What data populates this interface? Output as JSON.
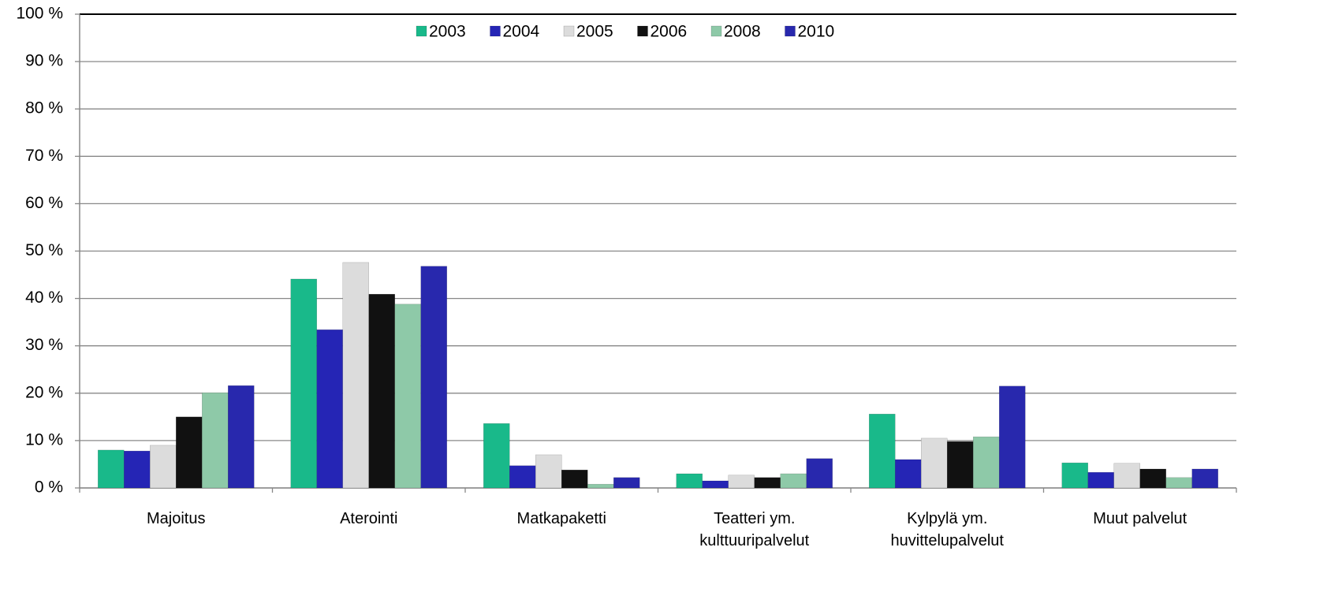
{
  "chart_data": {
    "type": "bar",
    "categories": [
      "Majoitus",
      "Aterointi",
      "Matkapaketti",
      "Teatteri ym. kulttuuripalvelut",
      "Kylpylä ym. huvittelupalvelut",
      "Muut palvelut"
    ],
    "series": [
      {
        "name": "2003",
        "color": "#19b98a",
        "values": [
          8.0,
          44.1,
          13.6,
          3.0,
          15.6,
          5.3
        ]
      },
      {
        "name": "2004",
        "color": "#2525b5",
        "values": [
          7.8,
          33.4,
          4.7,
          1.5,
          6.0,
          3.3
        ]
      },
      {
        "name": "2005",
        "color": "#dcdcdc",
        "values": [
          9.0,
          47.6,
          7.0,
          2.7,
          10.5,
          5.2
        ]
      },
      {
        "name": "2006",
        "color": "#111111",
        "values": [
          15.0,
          40.9,
          3.8,
          2.2,
          9.8,
          4.0
        ]
      },
      {
        "name": "2008",
        "color": "#8ec9a8",
        "values": [
          20.1,
          38.8,
          0.8,
          3.0,
          10.8,
          2.2
        ]
      },
      {
        "name": "2010",
        "color": "#2828ad",
        "values": [
          21.6,
          46.8,
          2.2,
          6.2,
          21.5,
          4.0
        ]
      }
    ],
    "ylim": [
      0,
      100
    ],
    "yticks": [
      {
        "value": 0,
        "label": "0 %"
      },
      {
        "value": 10,
        "label": "10 %"
      },
      {
        "value": 20,
        "label": "20 %"
      },
      {
        "value": 30,
        "label": "30 %"
      },
      {
        "value": 40,
        "label": "40 %"
      },
      {
        "value": 50,
        "label": "50 %"
      },
      {
        "value": 60,
        "label": "60 %"
      },
      {
        "value": 70,
        "label": "70 %"
      },
      {
        "value": 80,
        "label": "80 %"
      },
      {
        "value": 90,
        "label": "90 %"
      },
      {
        "value": 100,
        "label": "100 %"
      }
    ],
    "grid": true,
    "legend": "top"
  }
}
